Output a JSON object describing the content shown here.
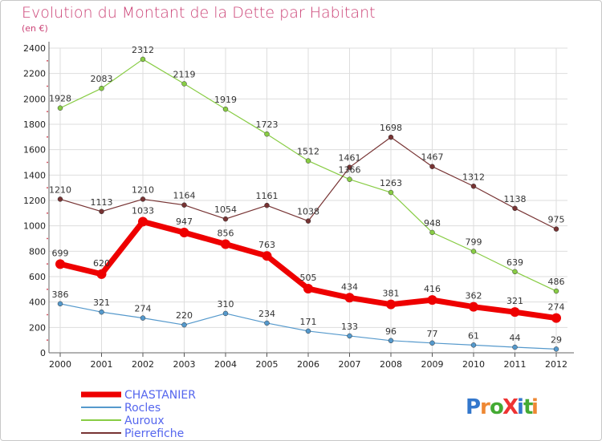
{
  "chart_data": {
    "type": "line",
    "title": "Evolution du Montant de la Dette par Habitant",
    "subtitle": "(en €)",
    "x": [
      "2000",
      "2001",
      "2002",
      "2003",
      "2004",
      "2005",
      "2006",
      "2007",
      "2008",
      "2009",
      "2010",
      "2011",
      "2012"
    ],
    "ylim": [
      0,
      2400
    ],
    "yticks": [
      0,
      200,
      400,
      600,
      800,
      1000,
      1200,
      1400,
      1600,
      1800,
      2000,
      2200,
      2400
    ],
    "grid": true,
    "legend_position": "bottom-left",
    "series": [
      {
        "name": "CHASTANIER",
        "color": "#ee0000",
        "values": [
          699,
          620,
          1033,
          947,
          856,
          763,
          505,
          434,
          381,
          416,
          362,
          321,
          274
        ]
      },
      {
        "name": "Rocles",
        "color": "#5599cc",
        "values": [
          386,
          321,
          274,
          220,
          310,
          234,
          171,
          133,
          96,
          77,
          61,
          44,
          29
        ]
      },
      {
        "name": "Auroux",
        "color": "#88cc44",
        "values": [
          1928,
          2083,
          2312,
          2119,
          1919,
          1723,
          1512,
          1366,
          1263,
          948,
          799,
          639,
          486
        ]
      },
      {
        "name": "Pierrefiche",
        "color": "#773333",
        "values": [
          1210,
          1113,
          1210,
          1164,
          1054,
          1161,
          1038,
          1461,
          1698,
          1467,
          1312,
          1138,
          975
        ]
      }
    ]
  },
  "logo": {
    "text": "ProXiti"
  }
}
